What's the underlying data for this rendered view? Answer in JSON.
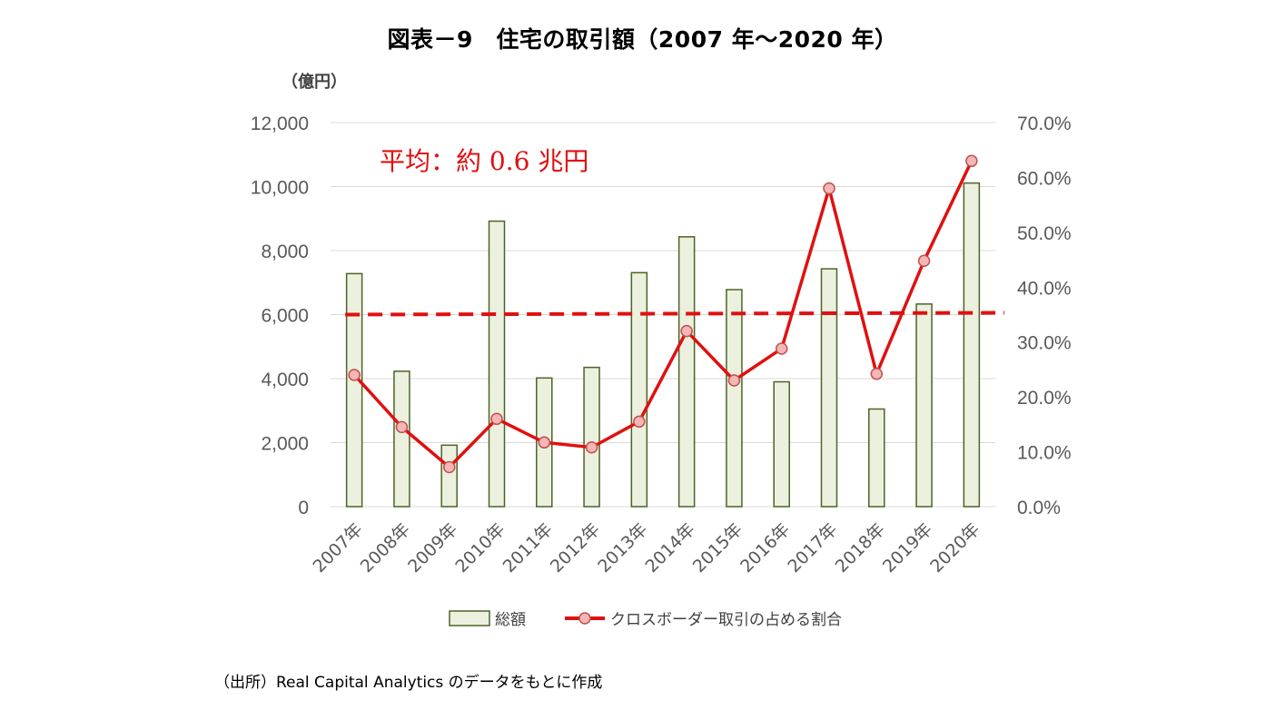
{
  "title": "図表－9　住宅の取引額（2007 年～2020 年）",
  "source_note": "（出所）Real Capital Analytics のデータをもとに作成",
  "chart_data": {
    "type": "bar",
    "categories": [
      "2007年",
      "2008年",
      "2009年",
      "2010年",
      "2011年",
      "2012年",
      "2013年",
      "2014年",
      "2015年",
      "2016年",
      "2017年",
      "2018年",
      "2019年",
      "2020年"
    ],
    "y_left_unit": "（億円）",
    "y_left_ticks": [
      "0",
      "2,000",
      "4,000",
      "6,000",
      "8,000",
      "10,000",
      "12,000"
    ],
    "y_left_lim": [
      0,
      12000
    ],
    "y_right_ticks": [
      "0.0%",
      "10.0%",
      "20.0%",
      "30.0%",
      "40.0%",
      "50.0%",
      "60.0%",
      "70.0%"
    ],
    "y_right_lim": [
      0,
      70
    ],
    "grid": true,
    "legend_position": "bottom",
    "series": [
      {
        "name": "総額",
        "type": "bar",
        "axis": "left",
        "values": [
          7280,
          4230,
          1920,
          8920,
          4020,
          4350,
          7310,
          8430,
          6780,
          3900,
          7430,
          3050,
          6330,
          10110
        ],
        "color": "#ebf1de",
        "stroke": "#4f6228"
      },
      {
        "name": "クロスボーダー取引の占める割合",
        "type": "line",
        "axis": "right",
        "values": [
          24.0,
          14.5,
          7.2,
          16.0,
          11.7,
          10.8,
          15.5,
          32.0,
          23.0,
          28.8,
          58.0,
          24.2,
          44.8,
          63.0
        ],
        "color": "#e01010",
        "marker_fill": "#f4b6b6",
        "marker_stroke": "#c0504d"
      }
    ],
    "average_line": {
      "value": 6000,
      "axis": "left",
      "color": "#e01010",
      "style": "dashed"
    },
    "annotation": "平均：約 0.6 兆円"
  }
}
